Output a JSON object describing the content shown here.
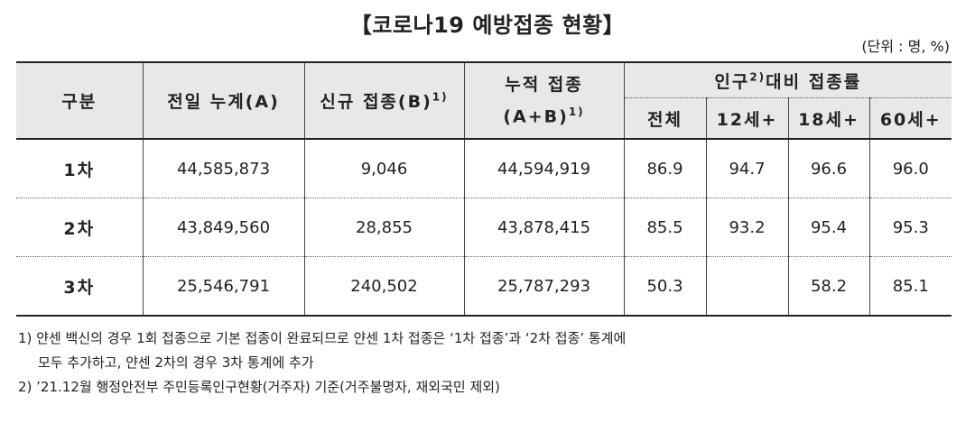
{
  "title": "【코로나19 예방접종 현황】",
  "unit": "(단위 : 명, %)",
  "headers": {
    "category": "구분",
    "prev_total": "전일 누계(A)",
    "new_label": "신규 접종(B)",
    "new_sup": "1)",
    "cum_line1": "누적 접종",
    "cum_line2": "(A+B)",
    "cum_sup": "1)",
    "rate_pre": "인구",
    "rate_sup": "2)",
    "rate_post": "대비 접종률",
    "rate_cols": [
      "전체",
      "12세+",
      "18세+",
      "60세+"
    ]
  },
  "rows": [
    {
      "category": "1차",
      "prev_total": "44,585,873",
      "new": "9,046",
      "cumulative": "44,594,919",
      "rate_all": "86.9",
      "rate_12": "94.7",
      "rate_18": "96.6",
      "rate_60": "96.0"
    },
    {
      "category": "2차",
      "prev_total": "43,849,560",
      "new": "28,855",
      "cumulative": "43,878,415",
      "rate_all": "85.5",
      "rate_12": "93.2",
      "rate_18": "95.4",
      "rate_60": "95.3"
    },
    {
      "category": "3차",
      "prev_total": "25,546,791",
      "new": "240,502",
      "cumulative": "25,787,293",
      "rate_all": "50.3",
      "rate_12": "",
      "rate_18": "58.2",
      "rate_60": "85.1"
    }
  ],
  "notes": {
    "n1_line1": "1) 얀센 백신의 경우 1회 접종으로 기본 접종이 완료되므로 얀센 1차 접종은 ‘1차 접종’과 ‘2차 접종’ 통계에",
    "n1_line2": "모두 추가하고, 얀센 2차의 경우 3차 통계에 추가",
    "n2": "2) ’21.12월 행정안전부 주민등록인구현황(거주자) 기준(거주불명자, 재외국민 제외)"
  }
}
